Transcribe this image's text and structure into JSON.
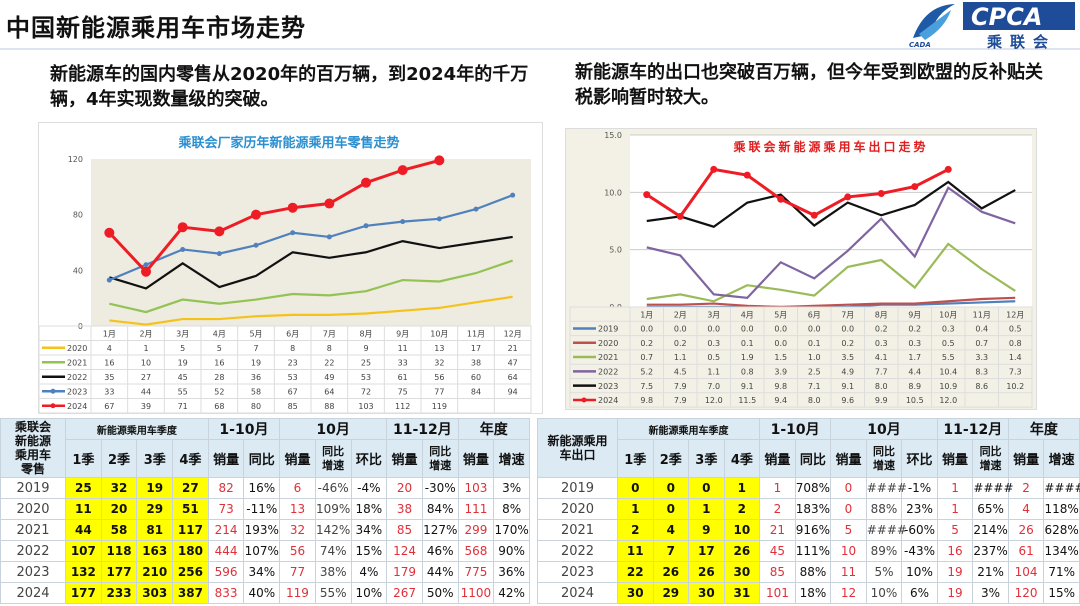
{
  "header": {
    "title": "中国新能源乘用车市场走势",
    "logo_text": "CPCA",
    "logo_sub": "乘联会",
    "logo_mark": "CADA"
  },
  "text": {
    "left": "新能源车的国内零售从2020年的百万辆，到2024年的千万辆，4年实现数量级的突破。",
    "right": "新能源车的出口也突破百万辆，但今年受到欧盟的反补贴关税影响暂时较大。"
  },
  "chart_data": [
    {
      "type": "line",
      "title": "乘联会厂家历年新能源乘用车零售走势",
      "categories": [
        "1月",
        "2月",
        "3月",
        "4月",
        "5月",
        "6月",
        "7月",
        "8月",
        "9月",
        "10月",
        "11月",
        "12月"
      ],
      "ylim": [
        0,
        120
      ],
      "yticks": [
        "0",
        "40",
        "80",
        "120"
      ],
      "grid": false,
      "legend": "table-below",
      "series": [
        {
          "name": "2020",
          "color": "#f5c21b",
          "marker": false,
          "values": [
            4,
            1,
            5,
            5,
            7,
            8,
            8,
            9,
            11,
            13,
            17,
            21
          ]
        },
        {
          "name": "2021",
          "color": "#92c353",
          "marker": false,
          "values": [
            16,
            10,
            19,
            16,
            19,
            23,
            22,
            25,
            33,
            32,
            38,
            47
          ]
        },
        {
          "name": "2022",
          "color": "#111111",
          "marker": false,
          "values": [
            35,
            27,
            45,
            28,
            36,
            53,
            49,
            53,
            61,
            56,
            60,
            64
          ]
        },
        {
          "name": "2023",
          "color": "#4f81bd",
          "marker": true,
          "values": [
            33,
            44,
            55,
            52,
            58,
            67,
            64,
            72,
            75,
            77,
            84,
            94
          ]
        },
        {
          "name": "2024",
          "color": "#ee1c24",
          "marker": true,
          "values": [
            67,
            39,
            71,
            68,
            80,
            85,
            88,
            103,
            112,
            119,
            null,
            null
          ]
        }
      ]
    },
    {
      "type": "line",
      "title": "乘联会新能源乘用车出口走势",
      "categories": [
        "1月",
        "2月",
        "3月",
        "4月",
        "5月",
        "6月",
        "7月",
        "8月",
        "9月",
        "10月",
        "11月",
        "12月"
      ],
      "ylim": [
        0,
        15
      ],
      "yticks": [
        "0.0",
        "5.0",
        "10.0",
        "15.0"
      ],
      "grid": true,
      "legend": "table-below",
      "series": [
        {
          "name": "2019",
          "color": "#4f81bd",
          "marker": false,
          "values": [
            "0.0",
            "0.0",
            "0.0",
            "0.0",
            "0.0",
            "0.0",
            "0.0",
            "0.2",
            "0.2",
            "0.3",
            "0.4",
            "0.5"
          ]
        },
        {
          "name": "2020",
          "color": "#c0504d",
          "marker": false,
          "values": [
            "0.2",
            "0.2",
            "0.3",
            "0.1",
            "0.0",
            "0.1",
            "0.2",
            "0.3",
            "0.3",
            "0.5",
            "0.7",
            "0.8"
          ]
        },
        {
          "name": "2021",
          "color": "#9bbb59",
          "marker": false,
          "values": [
            "0.7",
            "1.1",
            "0.5",
            "1.9",
            "1.5",
            "1.0",
            "3.5",
            "4.1",
            "1.7",
            "5.5",
            "3.3",
            "1.4"
          ]
        },
        {
          "name": "2022",
          "color": "#8064a2",
          "marker": false,
          "values": [
            "5.2",
            "4.5",
            "1.1",
            "0.8",
            "3.9",
            "2.5",
            "4.9",
            "7.7",
            "4.4",
            "10.4",
            "8.3",
            "7.3"
          ]
        },
        {
          "name": "2023",
          "color": "#111111",
          "marker": false,
          "values": [
            "7.5",
            "7.9",
            "7.0",
            "9.1",
            "9.8",
            "7.1",
            "9.1",
            "8.0",
            "8.9",
            "10.9",
            "8.6",
            "10.2"
          ]
        },
        {
          "name": "2024",
          "color": "#ee1c24",
          "marker": true,
          "values": [
            "9.8",
            "7.9",
            "12.0",
            "11.5",
            "9.4",
            "8.0",
            "9.6",
            "9.9",
            "10.5",
            "12.0",
            null,
            null
          ]
        }
      ]
    }
  ],
  "tables": [
    {
      "corner": "乘联会新能源乘用车零售",
      "groups": [
        "新能源乘用车季度",
        "1-10月",
        "10月",
        "11-12月",
        "年度"
      ],
      "sub": [
        "1季",
        "2季",
        "3季",
        "4季",
        "销量",
        "同比",
        "销量",
        "同比增速",
        "环比",
        "销量",
        "同比增速",
        "销量",
        "增速"
      ],
      "rows": [
        [
          "2019",
          "25",
          "32",
          "19",
          "27",
          "82",
          "16%",
          "6",
          "-46%",
          "-4%",
          "20",
          "-30%",
          "103",
          "3%"
        ],
        [
          "2020",
          "11",
          "20",
          "29",
          "51",
          "73",
          "-11%",
          "13",
          "109%",
          "18%",
          "38",
          "84%",
          "111",
          "8%"
        ],
        [
          "2021",
          "44",
          "58",
          "81",
          "117",
          "214",
          "193%",
          "32",
          "142%",
          "34%",
          "85",
          "127%",
          "299",
          "170%"
        ],
        [
          "2022",
          "107",
          "118",
          "163",
          "180",
          "444",
          "107%",
          "56",
          "74%",
          "15%",
          "124",
          "46%",
          "568",
          "90%"
        ],
        [
          "2023",
          "132",
          "177",
          "210",
          "256",
          "596",
          "34%",
          "77",
          "38%",
          "4%",
          "179",
          "44%",
          "775",
          "36%"
        ],
        [
          "2024",
          "177",
          "233",
          "303",
          "387",
          "833",
          "40%",
          "119",
          "55%",
          "10%",
          "267",
          "50%",
          "1100",
          "42%"
        ]
      ]
    },
    {
      "corner": "新能源乘用车出口",
      "groups": [
        "新能源乘用车季度",
        "1-10月",
        "10月",
        "11-12月",
        "年度"
      ],
      "sub": [
        "1季",
        "2季",
        "3季",
        "4季",
        "销量",
        "同比",
        "销量",
        "同比增速",
        "环比",
        "销量",
        "同比增速",
        "销量",
        "增速"
      ],
      "rows": [
        [
          "2019",
          "0",
          "0",
          "0",
          "1",
          "1",
          "708%",
          "0",
          "####",
          "-1%",
          "1",
          "####",
          "2",
          "####"
        ],
        [
          "2020",
          "1",
          "0",
          "1",
          "2",
          "2",
          "183%",
          "0",
          "88%",
          "23%",
          "1",
          "65%",
          "4",
          "118%"
        ],
        [
          "2021",
          "2",
          "4",
          "9",
          "10",
          "21",
          "916%",
          "5",
          "####",
          "-60%",
          "5",
          "214%",
          "26",
          "628%"
        ],
        [
          "2022",
          "11",
          "7",
          "17",
          "26",
          "45",
          "111%",
          "10",
          "89%",
          "-43%",
          "16",
          "237%",
          "61",
          "134%"
        ],
        [
          "2023",
          "22",
          "26",
          "26",
          "30",
          "85",
          "88%",
          "11",
          "5%",
          "10%",
          "19",
          "21%",
          "104",
          "71%"
        ],
        [
          "2024",
          "30",
          "29",
          "30",
          "31",
          "101",
          "18%",
          "12",
          "10%",
          "6%",
          "19",
          "3%",
          "120",
          "15%"
        ]
      ]
    }
  ]
}
